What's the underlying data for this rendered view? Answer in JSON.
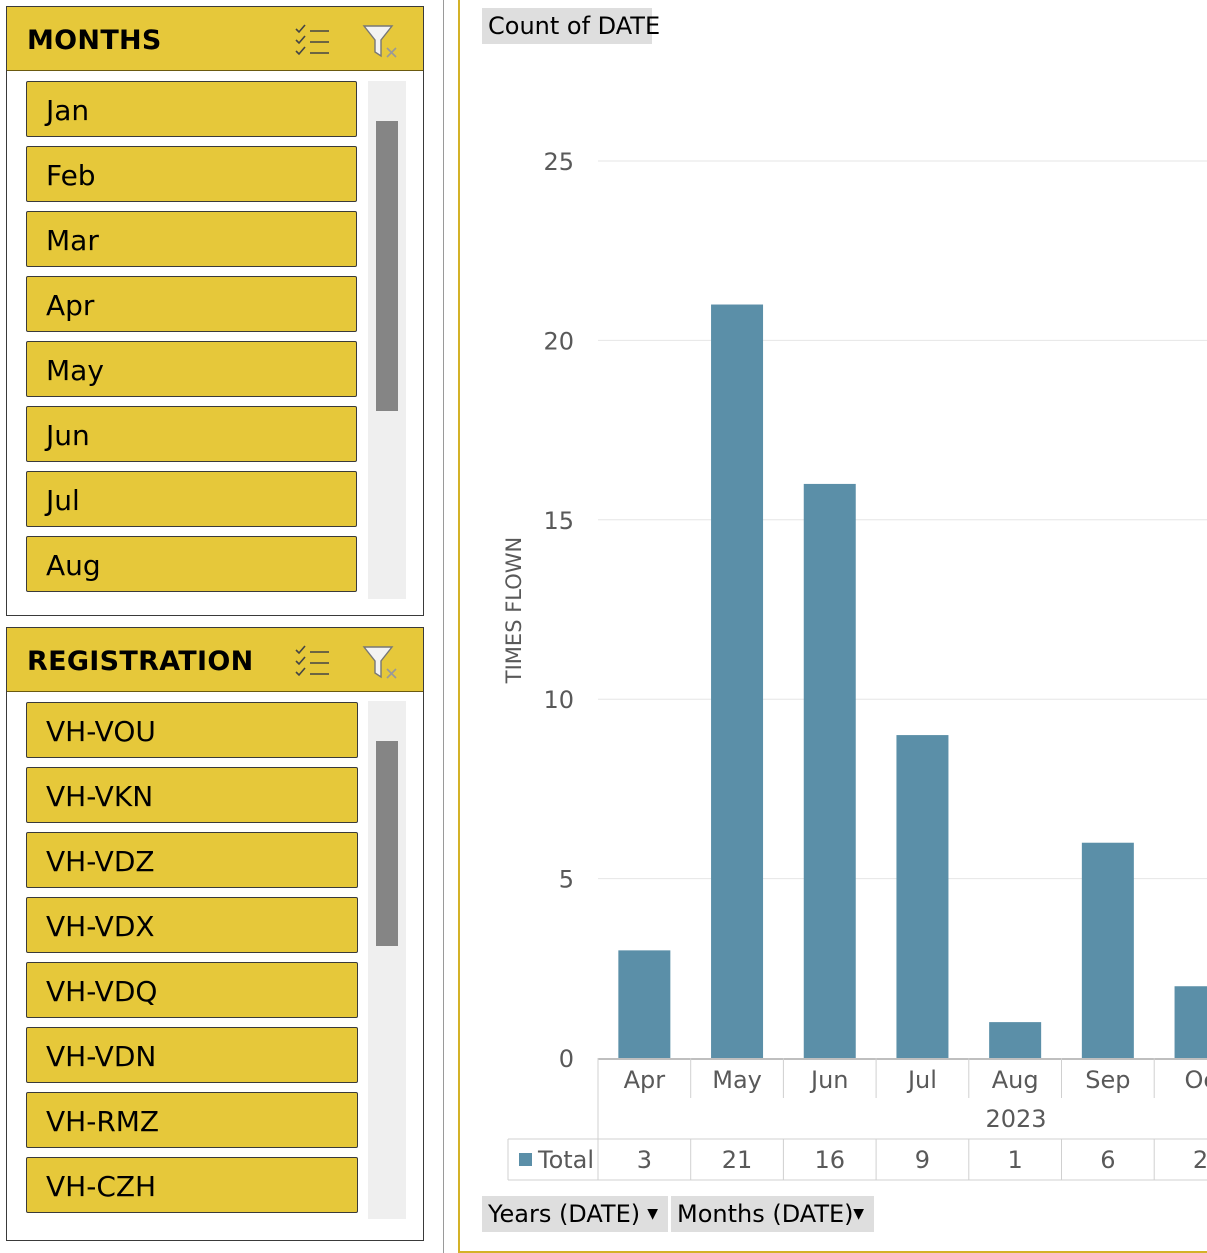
{
  "slicers": {
    "months": {
      "title": "MONTHS",
      "items": [
        "Jan",
        "Feb",
        "Mar",
        "Apr",
        "May",
        "Jun",
        "Jul",
        "Aug"
      ]
    },
    "registration": {
      "title": "REGISTRATION",
      "items": [
        "VH-VOU",
        "VH-VKN",
        "VH-VDZ",
        "VH-VDX",
        "VH-VDQ",
        "VH-VDN",
        "VH-RMZ",
        "VH-CZH"
      ]
    }
  },
  "icons": {
    "multi_select": "multi-select-icon",
    "clear_filter": "clear-filter-icon"
  },
  "colors": {
    "slicer_fill": "#e6c83a",
    "bar": "#5b8fa8"
  },
  "pivot": {
    "values_field": "Count of DATE",
    "row_fields": [
      "Years (DATE)",
      "Months (DATE)"
    ],
    "total_label": "Total"
  },
  "chart_data": {
    "type": "bar",
    "ylabel": "TIMES FLOWN",
    "year": "2023",
    "categories": [
      "Apr",
      "May",
      "Jun",
      "Jul",
      "Aug",
      "Sep",
      "Oc"
    ],
    "series": [
      {
        "name": "Total",
        "values": [
          3,
          21,
          16,
          9,
          1,
          6,
          2
        ]
      }
    ],
    "ylim": [
      0,
      25
    ],
    "yticks": [
      0,
      5,
      10,
      15,
      20,
      25
    ],
    "grid": true
  }
}
